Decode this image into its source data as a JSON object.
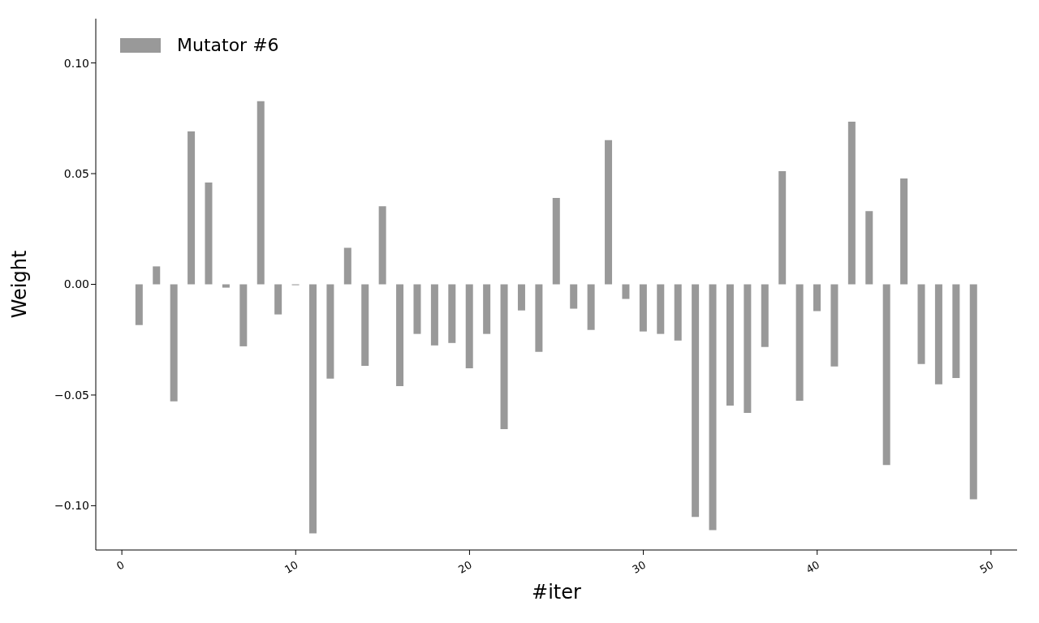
{
  "chart_data": {
    "type": "bar",
    "xlabel": "#iter",
    "ylabel": "Weight",
    "x": [
      1,
      2,
      3,
      4,
      5,
      6,
      7,
      8,
      9,
      10,
      11,
      12,
      13,
      14,
      15,
      16,
      17,
      18,
      19,
      20,
      21,
      22,
      23,
      24,
      25,
      26,
      27,
      28,
      29,
      30,
      31,
      32,
      33,
      34,
      35,
      36,
      37,
      38,
      39,
      40,
      41,
      42,
      43,
      44,
      45,
      46,
      47,
      48,
      49
    ],
    "series": [
      {
        "name": "Mutator #6",
        "color": "#999999",
        "values": [
          -0.0184,
          0.0081,
          -0.0529,
          0.0691,
          0.046,
          -0.0015,
          -0.028,
          0.0827,
          -0.0136,
          -0.0004,
          -0.1125,
          -0.0426,
          0.0165,
          -0.0368,
          0.0353,
          -0.046,
          -0.0224,
          -0.0276,
          -0.0265,
          -0.0379,
          -0.0224,
          -0.0654,
          -0.0118,
          -0.0305,
          0.039,
          -0.011,
          -0.0206,
          0.0651,
          -0.0066,
          -0.0213,
          -0.0224,
          -0.0254,
          -0.1051,
          -0.111,
          -0.0548,
          -0.0581,
          -0.0283,
          0.0511,
          -0.0526,
          -0.0121,
          -0.0371,
          0.0735,
          0.0331,
          -0.0816,
          0.0478,
          -0.036,
          -0.0452,
          -0.0423,
          -0.0971
        ]
      }
    ],
    "xlim": [
      -1.5,
      51.5
    ],
    "xticks": [
      0,
      10,
      20,
      30,
      40,
      50
    ],
    "ylim": [
      -0.12,
      0.12
    ],
    "yticks": [
      {
        "value": -0.1,
        "label": "−0.10"
      },
      {
        "value": -0.05,
        "label": "−0.05"
      },
      {
        "value": 0,
        "label": "0.00"
      },
      {
        "value": 0.05,
        "label": "0.05"
      },
      {
        "value": 0.1,
        "label": "0.10"
      }
    ],
    "grid": false,
    "legend": "top left"
  }
}
